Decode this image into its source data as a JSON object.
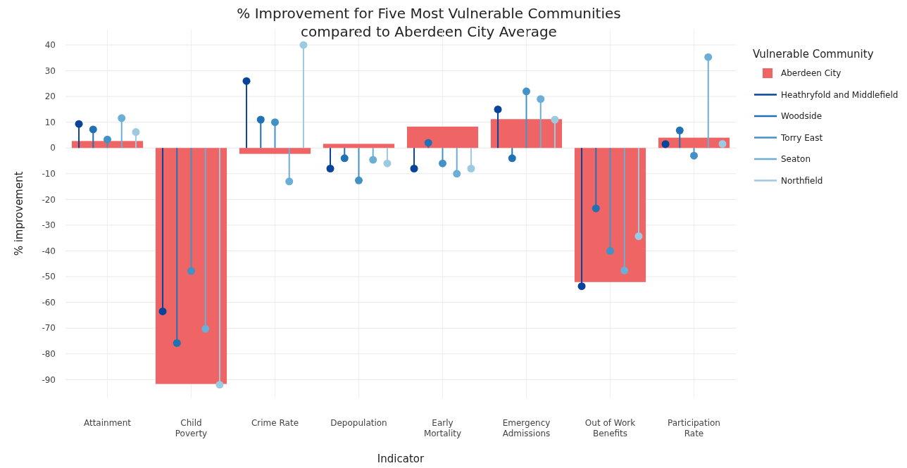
{
  "chart_data": {
    "type": "bar",
    "title": "% Improvement for Five Most Vulnerable Communities\ncompared to Aberdeen City Average",
    "xlabel": "Indicator",
    "ylabel": "% improvement",
    "legend_title": "Vulnerable Community",
    "legend": "top right",
    "grid": true,
    "marker": "circle",
    "categories": [
      "Attainment",
      "Child Poverty",
      "Crime Rate",
      "Depopulation",
      "Early Mortality",
      "Emergency Admissions",
      "Out of Work Benefits",
      "Participation Rate"
    ],
    "ylim": [
      -97,
      46
    ],
    "yticks": [
      -90,
      -80,
      -70,
      -60,
      -50,
      -40,
      -30,
      -20,
      -10,
      0,
      10,
      20,
      30,
      40
    ],
    "series": [
      {
        "name": "Aberdeen City",
        "color": "#ef6464",
        "values": [
          2.7,
          -91.7,
          -2.3,
          1.6,
          8.3,
          11.2,
          -52.1,
          4
        ]
      },
      {
        "name": "Heathryfold and Middlefield",
        "type": "lollipop",
        "color": "#08459a",
        "values": [
          9.3,
          -63.5,
          26,
          -8,
          -8,
          15,
          -53.7,
          1.5
        ]
      },
      {
        "name": "Woodside",
        "type": "lollipop",
        "color": "#2171b5",
        "values": [
          7.2,
          -75.8,
          11,
          -4,
          2,
          -4,
          -23.5,
          6.8
        ]
      },
      {
        "name": "Torry East",
        "type": "lollipop",
        "color": "#4292c6",
        "values": [
          3.3,
          -47.8,
          10,
          -12.6,
          -6,
          22,
          -40,
          -3
        ]
      },
      {
        "name": "Seaton",
        "type": "lollipop",
        "color": "#6baed6",
        "values": [
          11.6,
          -70.3,
          -13,
          -4.6,
          -10,
          19,
          -47.6,
          35.3
        ]
      },
      {
        "name": "Northfield",
        "type": "lollipop",
        "color": "#9ecae1",
        "values": [
          6.2,
          -92,
          40,
          -6,
          -8,
          11,
          -34.3,
          1.6
        ]
      }
    ]
  }
}
